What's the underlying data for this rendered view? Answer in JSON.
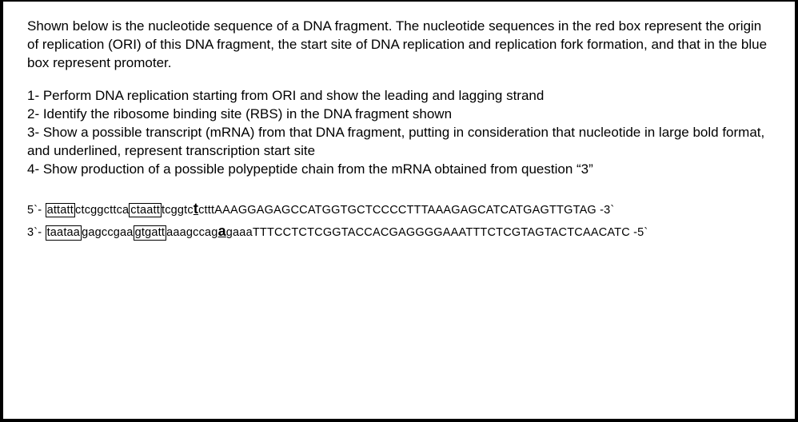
{
  "intro": "Shown below is the nucleotide sequence of a DNA fragment. The nucleotide sequences in the red box represent the origin of replication (ORI) of this DNA fragment, the start site of DNA replication and replication fork formation, and that in the blue box represent promoter.",
  "questions": {
    "q1": "1- Perform DNA replication starting from ORI and show the leading and lagging strand",
    "q2": "2- Identify the ribosome binding site (RBS) in the DNA fragment shown",
    "q3": "3- Show a possible transcript (mRNA) from that DNA fragment, putting in consideration that nucleotide in large bold format, and underlined, represent transcription start site",
    "q4": "4- Show production of a possible polypeptide chain from the mRNA obtained from question “3”"
  },
  "seq_top": {
    "label_5prime": "5`- ",
    "ori_box": "attatt",
    "seg1": "ctcggcttca",
    "promoter_box": "ctaatt",
    "seg2": "tcggtc",
    "tss": "t",
    "seg3_lower": "cttt",
    "seg3_upper": "AAAGGAGAGCCATGGTGCTCCCCTTTAAAGAGCATCATGAGTTGTAG -3`"
  },
  "seq_bottom": {
    "label_3prime": "3`- ",
    "ori_box": "taataa",
    "seg1": "gagccgaa",
    "promoter_box": "gtgatt",
    "seg2": "aaagccag",
    "tss": "a",
    "seg3_lower": "gaaa",
    "seg3_upper": "TTTCCTCTCGGTACCACGAGGGGAAATTTCTCGTAGTACTCAACATC -5`"
  }
}
